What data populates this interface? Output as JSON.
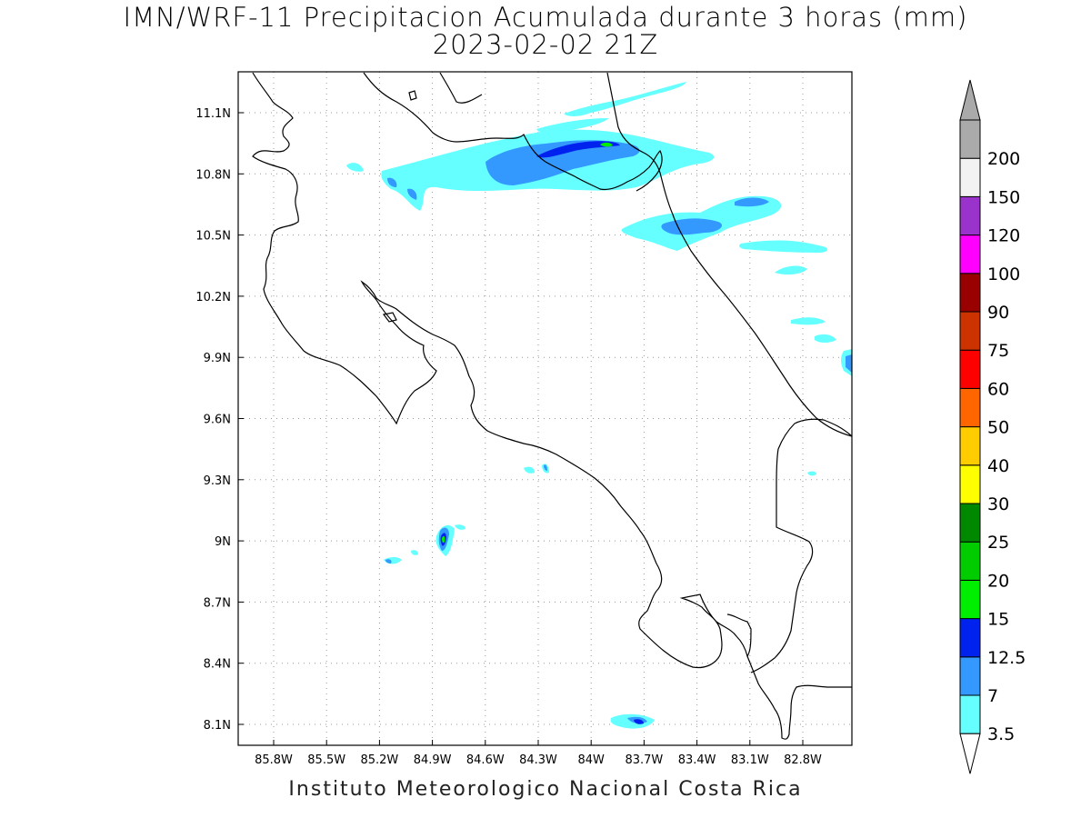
{
  "title": {
    "line1": "IMN/WRF-11 Precipitacion Acumulada durante 3 horas (mm)",
    "line2": "2023-02-02 21Z"
  },
  "footer": "Instituto Meteorologico Nacional Costa Rica",
  "axes": {
    "lat_labels": [
      "11.1N",
      "10.8N",
      "10.5N",
      "10.2N",
      "9.9N",
      "9.6N",
      "9.3N",
      "9N",
      "8.7N",
      "8.4N",
      "8.1N"
    ],
    "lon_labels": [
      "85.8W",
      "85.5W",
      "85.2W",
      "84.9W",
      "84.6W",
      "84.3W",
      "84W",
      "83.7W",
      "83.4W",
      "83.1W",
      "82.8W"
    ],
    "grid": "dotted"
  },
  "colorbar": {
    "labels": [
      "3.5",
      "7",
      "12.5",
      "15",
      "20",
      "25",
      "30",
      "40",
      "50",
      "60",
      "75",
      "90",
      "100",
      "120",
      "150",
      "200"
    ],
    "colors": [
      "#66ffff",
      "#3399ff",
      "#0022ee",
      "#00ee00",
      "#00cc00",
      "#008800",
      "#ffff00",
      "#ffcc00",
      "#ff6600",
      "#ff0000",
      "#cc3300",
      "#990000",
      "#ff00ff",
      "#9933cc",
      "#f2f2f2",
      "#aaaaaa"
    ],
    "under_color": "#ffffff"
  },
  "precip_colors": {
    "light": "#66ffff",
    "medium": "#3399ff",
    "heavy": "#0022ee",
    "intense": "#00ee00"
  }
}
